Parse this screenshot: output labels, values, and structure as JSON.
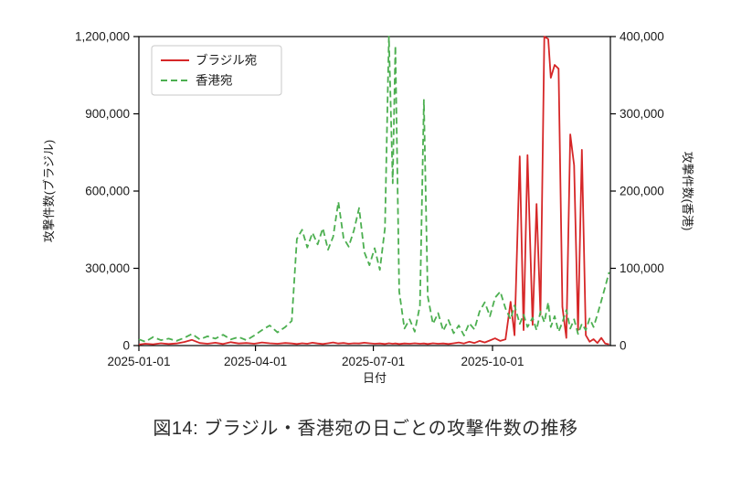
{
  "caption": "図14: ブラジル・香港宛の日ごとの攻撃件数の推移",
  "colors": {
    "brazil": "#d62728",
    "hongkong": "#4caf50",
    "axis": "#000000",
    "legend_border": "#c8c8c8"
  },
  "chart_data": {
    "type": "line",
    "title": "",
    "xlabel": "日付",
    "ylabel_left": "攻撃件数(ブラジル)",
    "ylabel_right": "攻撃件数(香港)",
    "grid": false,
    "legend_position": "upper left",
    "x_range": [
      "2025-01-01",
      "2025-12-31"
    ],
    "x_ticks": [
      "2025-01-01",
      "2025-04-01",
      "2025-07-01",
      "2025-10-01"
    ],
    "ylim_left": [
      0,
      1200000
    ],
    "ylim_right": [
      0,
      400000
    ],
    "ytick_left_values": [
      0,
      300000,
      600000,
      900000,
      1200000
    ],
    "ytick_left_labels": [
      "0",
      "300,000",
      "600,000",
      "900,000",
      "1,200,000"
    ],
    "ytick_right_values": [
      0,
      100000,
      200000,
      300000,
      400000
    ],
    "ytick_right_labels": [
      "0",
      "100,000",
      "200,000",
      "300,000",
      "400,000"
    ],
    "x": [
      "2025-01-01",
      "2025-01-06",
      "2025-01-12",
      "2025-01-18",
      "2025-01-24",
      "2025-01-30",
      "2025-02-05",
      "2025-02-11",
      "2025-02-17",
      "2025-02-23",
      "2025-03-01",
      "2025-03-07",
      "2025-03-13",
      "2025-03-19",
      "2025-03-25",
      "2025-03-31",
      "2025-04-06",
      "2025-04-12",
      "2025-04-18",
      "2025-04-24",
      "2025-04-29",
      "2025-05-03",
      "2025-05-07",
      "2025-05-11",
      "2025-05-15",
      "2025-05-19",
      "2025-05-23",
      "2025-05-27",
      "2025-05-31",
      "2025-06-04",
      "2025-06-08",
      "2025-06-12",
      "2025-06-16",
      "2025-06-20",
      "2025-06-24",
      "2025-06-28",
      "2025-07-02",
      "2025-07-06",
      "2025-07-10",
      "2025-07-13",
      "2025-07-16",
      "2025-07-18",
      "2025-07-21",
      "2025-07-25",
      "2025-07-29",
      "2025-08-02",
      "2025-08-06",
      "2025-08-09",
      "2025-08-12",
      "2025-08-16",
      "2025-08-20",
      "2025-08-24",
      "2025-08-28",
      "2025-09-01",
      "2025-09-05",
      "2025-09-09",
      "2025-09-13",
      "2025-09-17",
      "2025-09-21",
      "2025-09-25",
      "2025-09-29",
      "2025-10-03",
      "2025-10-07",
      "2025-10-11",
      "2025-10-15",
      "2025-10-18",
      "2025-10-22",
      "2025-10-25",
      "2025-10-28",
      "2025-11-01",
      "2025-11-04",
      "2025-11-07",
      "2025-11-10",
      "2025-11-13",
      "2025-11-15",
      "2025-11-18",
      "2025-11-21",
      "2025-11-24",
      "2025-11-27",
      "2025-11-30",
      "2025-12-03",
      "2025-12-06",
      "2025-12-09",
      "2025-12-12",
      "2025-12-15",
      "2025-12-18",
      "2025-12-21",
      "2025-12-24",
      "2025-12-27",
      "2025-12-30"
    ],
    "series": [
      {
        "name": "ブラジル宛",
        "axis": "left",
        "color": "#d62728",
        "style": "solid",
        "values": [
          4000,
          7000,
          5000,
          9000,
          6000,
          8000,
          14000,
          22000,
          10000,
          7000,
          11000,
          6000,
          13000,
          8000,
          10000,
          7000,
          12000,
          9000,
          7000,
          10000,
          8000,
          6000,
          9000,
          7000,
          11000,
          8000,
          6000,
          9000,
          12000,
          8000,
          10000,
          7000,
          9000,
          8000,
          11000,
          9000,
          7000,
          8000,
          6000,
          9000,
          7000,
          8000,
          6000,
          8000,
          7000,
          9000,
          7000,
          8000,
          6000,
          9000,
          7000,
          8000,
          6000,
          9000,
          12000,
          8000,
          15000,
          10000,
          18000,
          12000,
          20000,
          28000,
          18000,
          24000,
          170000,
          40000,
          735000,
          60000,
          740000,
          80000,
          550000,
          120000,
          1200000,
          1190000,
          1040000,
          1090000,
          1075000,
          150000,
          30000,
          820000,
          700000,
          60000,
          760000,
          40000,
          15000,
          25000,
          10000,
          30000,
          8000,
          5000
        ]
      },
      {
        "name": "香港宛",
        "axis": "right",
        "color": "#4caf50",
        "style": "dashed",
        "values": [
          8000,
          5000,
          11000,
          7000,
          9000,
          6000,
          10000,
          15000,
          8000,
          12000,
          9000,
          14000,
          8000,
          11000,
          7000,
          13000,
          20000,
          26000,
          17000,
          24000,
          32000,
          138000,
          150000,
          127000,
          146000,
          131000,
          152000,
          124000,
          141000,
          186000,
          139000,
          128000,
          149000,
          178000,
          121000,
          104000,
          126000,
          98000,
          152000,
          400000,
          210000,
          388000,
          70000,
          22000,
          34000,
          18000,
          52000,
          318000,
          64000,
          28000,
          42000,
          19000,
          33000,
          16000,
          26000,
          13000,
          29000,
          21000,
          44000,
          56000,
          38000,
          62000,
          70000,
          48000,
          34000,
          52000,
          28000,
          40000,
          24000,
          36000,
          20000,
          44000,
          30000,
          56000,
          24000,
          38000,
          18000,
          30000,
          46000,
          22000,
          34000,
          15000,
          28000,
          20000,
          35000,
          24000,
          40000,
          58000,
          76000,
          95000
        ]
      }
    ]
  }
}
